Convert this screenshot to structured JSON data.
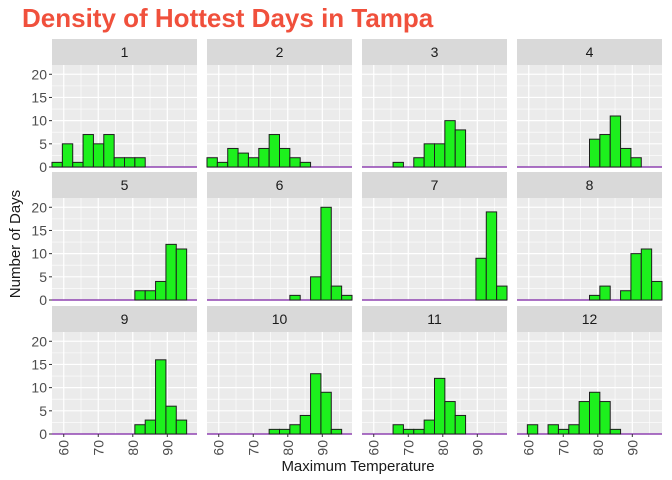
{
  "chart_data": {
    "type": "bar",
    "title": "Density of Hottest Days in Tampa",
    "xlabel": "Maximum Temperature",
    "ylabel": "Number of Days",
    "xlim": [
      56.6,
      98.6
    ],
    "ylim": [
      0,
      22
    ],
    "x_ticks": [
      60,
      70,
      80,
      90
    ],
    "y_ticks": [
      0,
      5,
      10,
      15,
      20
    ],
    "bin_width": 3,
    "bin_centers": [
      58.1,
      61.1,
      64.1,
      67.1,
      70.1,
      73.1,
      76.1,
      79.1,
      82.1,
      85.1,
      88.1,
      91.1,
      94.1,
      97.1
    ],
    "grid": true,
    "legend": "none",
    "facets": [
      {
        "label": "1",
        "values": [
          1,
          5,
          1,
          7,
          5,
          7,
          2,
          2,
          2,
          0,
          0,
          0,
          0,
          0
        ]
      },
      {
        "label": "2",
        "values": [
          2,
          1,
          4,
          3,
          2,
          4,
          7,
          4,
          2,
          1,
          0,
          0,
          0,
          0
        ]
      },
      {
        "label": "3",
        "values": [
          0,
          0,
          0,
          1,
          0,
          2,
          5,
          5,
          10,
          8,
          0,
          0,
          0,
          0
        ]
      },
      {
        "label": "4",
        "values": [
          0,
          0,
          0,
          0,
          0,
          0,
          0,
          6,
          7,
          11,
          4,
          2,
          0,
          0
        ]
      },
      {
        "label": "5",
        "values": [
          0,
          0,
          0,
          0,
          0,
          0,
          0,
          0,
          2,
          2,
          4,
          12,
          11,
          0
        ]
      },
      {
        "label": "6",
        "values": [
          0,
          0,
          0,
          0,
          0,
          0,
          0,
          0,
          1,
          0,
          5,
          20,
          3,
          1
        ]
      },
      {
        "label": "7",
        "values": [
          0,
          0,
          0,
          0,
          0,
          0,
          0,
          0,
          0,
          0,
          0,
          9,
          19,
          3
        ]
      },
      {
        "label": "8",
        "values": [
          0,
          0,
          0,
          0,
          0,
          0,
          0,
          1,
          3,
          0,
          2,
          10,
          11,
          4
        ]
      },
      {
        "label": "9",
        "values": [
          0,
          0,
          0,
          0,
          0,
          0,
          0,
          0,
          2,
          3,
          16,
          6,
          3,
          0
        ]
      },
      {
        "label": "10",
        "values": [
          0,
          0,
          0,
          0,
          0,
          0,
          1,
          1,
          2,
          4,
          13,
          9,
          1,
          0
        ]
      },
      {
        "label": "11",
        "values": [
          0,
          0,
          0,
          2,
          1,
          1,
          3,
          12,
          7,
          4,
          0,
          0,
          0,
          0
        ]
      },
      {
        "label": "12",
        "values": [
          0,
          2,
          0,
          2,
          1,
          2,
          7,
          9,
          7,
          1,
          0,
          0,
          0,
          0
        ]
      }
    ]
  },
  "colors": {
    "title": "#f0503c",
    "panel_bg": "#ebebeb",
    "strip_bg": "#d9d9d9",
    "grid_major": "#ffffff",
    "bar_fill": "#1df01d",
    "bar_stroke": "#1e1e1e",
    "baseline": "#7a1fa2",
    "text": "#1a1a1a",
    "tick_text": "#4d4d4d"
  }
}
